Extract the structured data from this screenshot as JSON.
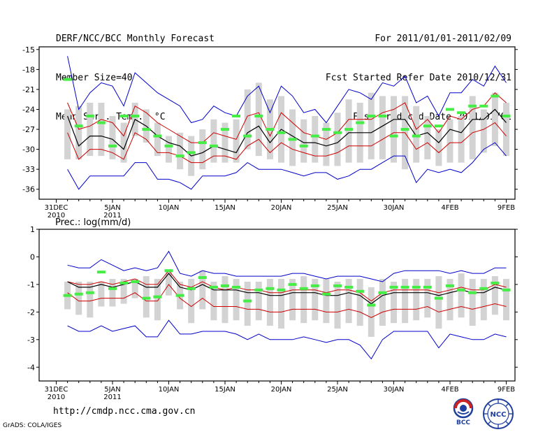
{
  "header": {
    "title": "DERF/NCC/BCC Monthly Forecast",
    "member_size": "Member Size=40",
    "variable": "Mean Surf. Temp.: °C",
    "period": "For 2011/01/01-2011/02/09",
    "started": "Fcst Started Refer Date 2010/12/31",
    "produced": "Fcst Produced Date 2011/01/01"
  },
  "footer": {
    "url": "http://cmdp.ncc.cma.gov.cn",
    "credit": "GrADS: COLA/IGES",
    "logo_bcc_text": "BCC",
    "logo_ncc_text": "NCC"
  },
  "colors": {
    "box": "#d3d3d3",
    "ensemble_mean": "#000000",
    "spread": "#cc0000",
    "envelope": "#0000cc",
    "marker": "#44ee44"
  },
  "chart_data": [
    {
      "type": "line",
      "title": "",
      "ylabel": "Mean Surf. Temp.: °C",
      "ylim": [
        -37.5,
        -14.6
      ],
      "yticks": [
        -15,
        -18,
        -21,
        -24,
        -27,
        -30,
        -33,
        -36
      ],
      "x_days": [
        1,
        2,
        3,
        4,
        5,
        6,
        7,
        8,
        9,
        10,
        11,
        12,
        13,
        14,
        15,
        16,
        17,
        18,
        19,
        20,
        21,
        22,
        23,
        24,
        25,
        26,
        27,
        28,
        29,
        30,
        31,
        32,
        33,
        34,
        35,
        36,
        37,
        38,
        39,
        40
      ],
      "xtick_labels": [
        {
          "day": 0,
          "text": "31DEC",
          "sub": "2010"
        },
        {
          "day": 5,
          "text": "5JAN",
          "sub": "2011"
        },
        {
          "day": 10,
          "text": "10JAN",
          "sub": ""
        },
        {
          "day": 15,
          "text": "15JAN",
          "sub": ""
        },
        {
          "day": 20,
          "text": "20JAN",
          "sub": ""
        },
        {
          "day": 25,
          "text": "25JAN",
          "sub": ""
        },
        {
          "day": 30,
          "text": "30JAN",
          "sub": ""
        },
        {
          "day": 35,
          "text": "4FEB",
          "sub": ""
        },
        {
          "day": 40,
          "text": "9FEB",
          "sub": ""
        }
      ],
      "series": [
        {
          "name": "max",
          "color": "#0000cc",
          "values": [
            -16,
            -24,
            -21.5,
            -20,
            -20.5,
            -23.5,
            -18.5,
            -20,
            -21.5,
            -22.5,
            -23.5,
            -26,
            -25.5,
            -23.5,
            -24.5,
            -25,
            -22,
            -20.5,
            -24.5,
            -20.5,
            -22,
            -24.5,
            -24,
            -26,
            -23.5,
            -21,
            -21.5,
            -22.5,
            -20,
            -20.5,
            -19,
            -23,
            -22,
            -25,
            -21.5,
            -21.5,
            -19.5,
            -20.5,
            -17.5,
            -20
          ]
        },
        {
          "name": "upper",
          "color": "#cc0000",
          "values": [
            -23,
            -27,
            -26.5,
            -25.5,
            -26,
            -28,
            -23.5,
            -24.5,
            -26,
            -27,
            -28,
            -29,
            -29,
            -27.5,
            -28,
            -28.5,
            -25,
            -24.5,
            -28,
            -24.5,
            -26,
            -27.5,
            -28,
            -28.5,
            -27.5,
            -25.5,
            -25.5,
            -25.5,
            -24.5,
            -24,
            -23,
            -27,
            -25.5,
            -27.5,
            -25,
            -25.5,
            -24,
            -23.5,
            -21.5,
            -23
          ]
        },
        {
          "name": "mean",
          "color": "#000000",
          "values": [
            -25,
            -29.5,
            -28,
            -28,
            -28.5,
            -30,
            -25.5,
            -26.5,
            -28,
            -29,
            -29.5,
            -31,
            -30.5,
            -29.5,
            -30,
            -30.5,
            -27.5,
            -26.5,
            -29,
            -27,
            -28,
            -29,
            -29,
            -29.5,
            -29,
            -27.5,
            -27.5,
            -27.5,
            -26.5,
            -25.5,
            -25.5,
            -28,
            -27.5,
            -29,
            -27,
            -27.5,
            -25.5,
            -25.5,
            -24,
            -26
          ]
        },
        {
          "name": "lower",
          "color": "#cc0000",
          "values": [
            -27.5,
            -31.5,
            -30,
            -30,
            -30.5,
            -31.5,
            -27.5,
            -28.5,
            -30.5,
            -30.5,
            -31,
            -32,
            -32,
            -31,
            -31,
            -31.5,
            -29.5,
            -28.5,
            -30.5,
            -29,
            -30,
            -30.5,
            -31,
            -31,
            -30.5,
            -29.5,
            -29.5,
            -29.5,
            -28.5,
            -27.5,
            -27.5,
            -30,
            -29,
            -30.5,
            -29,
            -29,
            -27.5,
            -27,
            -26,
            -28
          ]
        },
        {
          "name": "min",
          "color": "#0000cc",
          "values": [
            -33,
            -36,
            -34,
            -34,
            -34,
            -34,
            -32,
            -32,
            -34.5,
            -34.5,
            -35,
            -36,
            -34,
            -34,
            -34,
            -33.5,
            -32,
            -33,
            -33,
            -33,
            -33.5,
            -34,
            -33.5,
            -33.5,
            -34.5,
            -34,
            -33,
            -33,
            -32,
            -31,
            -31,
            -35,
            -33,
            -33.5,
            -33,
            -33.5,
            -32,
            -30,
            -29,
            -31
          ]
        }
      ],
      "box_low": [
        -31.5,
        -31.5,
        -31,
        -31,
        -31.5,
        -32,
        -28,
        -29,
        -31,
        -32,
        -33,
        -34,
        -33,
        -32,
        -32,
        -32,
        -30,
        -31,
        -31.5,
        -32,
        -32.5,
        -32,
        -32,
        -32.5,
        -32.5,
        -32,
        -32,
        -31.5,
        -31.5,
        -32,
        -33,
        -32,
        -31.5,
        -32.5,
        -32,
        -32,
        -31.5,
        -30.5,
        -29.5,
        -31
      ],
      "box_high": [
        -24,
        -23.5,
        -23,
        -23,
        -25,
        -26,
        -23,
        -24,
        -26,
        -28,
        -27.5,
        -28,
        -27,
        -25.5,
        -26,
        -25.5,
        -21,
        -20,
        -22.5,
        -22,
        -24,
        -25.5,
        -25,
        -26,
        -24.5,
        -22.5,
        -23,
        -21.5,
        -22,
        -22,
        -22,
        -23.5,
        -25,
        -27,
        -25.5,
        -25,
        -22,
        -24,
        -21.5,
        -23
      ],
      "markers": [
        -19.5,
        -26.5,
        -25,
        -26,
        -29.5,
        -25,
        -25,
        -27,
        -28,
        -29.5,
        -31,
        -30.5,
        -29,
        -29.5,
        -27,
        -25,
        -28,
        -25,
        -27,
        -27.5,
        -28.5,
        -29.5,
        -28,
        -27,
        -27.5,
        -27,
        -26,
        -25,
        -25,
        -28,
        -27,
        -28,
        -26.5,
        -26.5,
        -24,
        -24.5,
        -23.5,
        -23.5,
        -22,
        -25
      ]
    },
    {
      "type": "line",
      "title": "Prec.: log(mm/d)",
      "ylabel": "Prec.: log(mm/d)",
      "ylim": [
        -4.5,
        1
      ],
      "yticks": [
        1,
        0,
        -1,
        -2,
        -3,
        -4
      ],
      "x_days": [
        1,
        2,
        3,
        4,
        5,
        6,
        7,
        8,
        9,
        10,
        11,
        12,
        13,
        14,
        15,
        16,
        17,
        18,
        19,
        20,
        21,
        22,
        23,
        24,
        25,
        26,
        27,
        28,
        29,
        30,
        31,
        32,
        33,
        34,
        35,
        36,
        37,
        38,
        39,
        40
      ],
      "xtick_labels": [
        {
          "day": 0,
          "text": "31DEC",
          "sub": "2010"
        },
        {
          "day": 5,
          "text": "5JAN",
          "sub": "2011"
        },
        {
          "day": 10,
          "text": "10JAN",
          "sub": ""
        },
        {
          "day": 15,
          "text": "15JAN",
          "sub": ""
        },
        {
          "day": 20,
          "text": "20JAN",
          "sub": ""
        },
        {
          "day": 25,
          "text": "25JAN",
          "sub": ""
        },
        {
          "day": 30,
          "text": "30JAN",
          "sub": ""
        },
        {
          "day": 35,
          "text": "4FEB",
          "sub": ""
        },
        {
          "day": 40,
          "text": "9FEB",
          "sub": ""
        }
      ],
      "series": [
        {
          "name": "max",
          "color": "#0000cc",
          "values": [
            -0.3,
            -0.4,
            -0.4,
            -0.1,
            -0.3,
            -0.5,
            -0.4,
            -0.5,
            -0.4,
            0.2,
            -0.6,
            -0.7,
            -0.5,
            -0.6,
            -0.6,
            -0.7,
            -0.7,
            -0.7,
            -0.7,
            -0.7,
            -0.6,
            -0.6,
            -0.7,
            -0.8,
            -0.7,
            -0.7,
            -0.7,
            -0.8,
            -0.9,
            -0.6,
            -0.5,
            -0.5,
            -0.5,
            -0.5,
            -0.6,
            -0.5,
            -0.6,
            -0.6,
            -0.4,
            -0.4
          ]
        },
        {
          "name": "upper",
          "color": "#cc0000",
          "values": [
            -0.9,
            -1.0,
            -1.0,
            -0.9,
            -1.0,
            -0.9,
            -0.8,
            -1.0,
            -1.0,
            -0.5,
            -1.0,
            -1.1,
            -0.9,
            -1.1,
            -1.2,
            -1.1,
            -1.2,
            -1.2,
            -1.3,
            -1.3,
            -1.2,
            -1.2,
            -1.2,
            -1.3,
            -1.2,
            -1.2,
            -1.3,
            -1.6,
            -1.3,
            -1.2,
            -1.2,
            -1.2,
            -1.2,
            -1.3,
            -1.2,
            -1.1,
            -1.2,
            -1.2,
            -1.0,
            -1.1
          ]
        },
        {
          "name": "mean",
          "color": "#000000",
          "values": [
            -0.9,
            -1.1,
            -1.1,
            -1.0,
            -1.1,
            -1.0,
            -0.9,
            -1.1,
            -1.1,
            -0.6,
            -1.1,
            -1.2,
            -1.0,
            -1.2,
            -1.2,
            -1.2,
            -1.3,
            -1.3,
            -1.4,
            -1.4,
            -1.3,
            -1.3,
            -1.3,
            -1.4,
            -1.4,
            -1.3,
            -1.4,
            -1.7,
            -1.4,
            -1.3,
            -1.3,
            -1.3,
            -1.3,
            -1.4,
            -1.3,
            -1.2,
            -1.3,
            -1.3,
            -1.1,
            -1.2
          ]
        },
        {
          "name": "lower",
          "color": "#cc0000",
          "values": [
            -1.3,
            -1.6,
            -1.6,
            -1.5,
            -1.5,
            -1.5,
            -1.3,
            -1.6,
            -1.6,
            -1.0,
            -1.5,
            -1.8,
            -1.5,
            -1.8,
            -1.8,
            -1.8,
            -1.9,
            -1.9,
            -2.0,
            -2.0,
            -1.9,
            -1.9,
            -1.9,
            -2.0,
            -2.0,
            -1.9,
            -2.0,
            -2.2,
            -2.0,
            -1.9,
            -1.9,
            -1.9,
            -1.8,
            -2.0,
            -1.9,
            -1.8,
            -1.9,
            -1.8,
            -1.7,
            -1.8
          ]
        },
        {
          "name": "min",
          "color": "#0000cc",
          "values": [
            -2.5,
            -2.7,
            -2.7,
            -2.5,
            -2.7,
            -2.6,
            -2.5,
            -2.9,
            -2.9,
            -2.3,
            -2.8,
            -2.8,
            -2.7,
            -2.7,
            -2.7,
            -2.8,
            -3.0,
            -2.8,
            -3.0,
            -3.0,
            -3.0,
            -2.9,
            -3.0,
            -3.1,
            -3.0,
            -3.0,
            -3.2,
            -3.7,
            -3.0,
            -2.7,
            -2.7,
            -2.7,
            -2.7,
            -3.3,
            -2.8,
            -2.9,
            -3.0,
            -3.0,
            -2.8,
            -2.9
          ]
        },
        {
          "name": "marker",
          "color": "#44ee44",
          "values": [
            -1.4,
            -1.35,
            -1.3,
            -0.55,
            -1.15,
            -0.95,
            -0.9,
            -1.5,
            -1.45,
            -0.5,
            -1.4,
            -1.15,
            -0.75,
            -1.1,
            -1.05,
            -1.1,
            -1.6,
            -1.2,
            -1.15,
            -1.2,
            -1.0,
            -1.15,
            -1.05,
            -1.35,
            -1.05,
            -1.1,
            -1.25,
            -1.75,
            -1.3,
            -1.1,
            -1.1,
            -1.1,
            -1.1,
            -1.5,
            -1.05,
            -1.2,
            -1.3,
            -1.15,
            -0.95,
            -1.2
          ]
        }
      ],
      "box_low": [
        -1.9,
        -2.1,
        -2.2,
        -1.8,
        -1.8,
        -1.7,
        -1.5,
        -2.2,
        -2.3,
        -1.4,
        -1.9,
        -2.4,
        -1.9,
        -2.3,
        -2.4,
        -2.3,
        -2.5,
        -2.3,
        -2.5,
        -2.6,
        -2.3,
        -2.4,
        -2.3,
        -2.4,
        -2.6,
        -2.4,
        -2.5,
        -2.9,
        -2.5,
        -2.4,
        -2.4,
        -2.3,
        -2.2,
        -2.6,
        -2.3,
        -2.2,
        -2.5,
        -2.3,
        -2.1,
        -2.3
      ],
      "box_high": [
        -0.9,
        -0.9,
        -0.9,
        -0.9,
        -0.8,
        -0.8,
        -0.8,
        -0.7,
        -0.8,
        -0.5,
        -0.9,
        -0.8,
        -0.5,
        -0.9,
        -0.7,
        -0.8,
        -0.9,
        -0.9,
        -0.8,
        -0.8,
        -0.8,
        -0.7,
        -0.8,
        -0.8,
        -0.9,
        -0.8,
        -0.8,
        -1.1,
        -0.8,
        -0.9,
        -0.8,
        -0.8,
        -0.8,
        -0.7,
        -0.8,
        -0.6,
        -0.8,
        -0.8,
        -0.7,
        -0.8
      ]
    }
  ]
}
